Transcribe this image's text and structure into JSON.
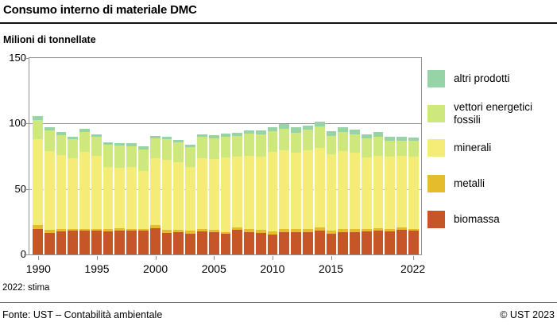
{
  "header": {
    "title": "Consumo interno di materiale DMC",
    "subtitle": "Milioni di tonnellate"
  },
  "footnote": "2022: stima",
  "footer": {
    "source": "Fonte: UST – Contabilità ambientale",
    "copyright": "© UST 2023"
  },
  "colors": {
    "biomassa": "#c65527",
    "metalli": "#e4bd2d",
    "minerali": "#f3ed77",
    "vettori_energetici_fossili": "#cfe87d",
    "altri_prodotti": "#96d3a7",
    "frame": "#8f8f8f"
  },
  "legend": [
    {
      "label": "altri prodotti",
      "color": "#96d3a7"
    },
    {
      "label": "vettori energetici fossili",
      "color": "#cfe87d"
    },
    {
      "label": "minerali",
      "color": "#f3ed77"
    },
    {
      "label": "metalli",
      "color": "#e4bd2d"
    },
    {
      "label": "biomassa",
      "color": "#c65527"
    }
  ],
  "chart_data": {
    "type": "bar",
    "stacked": true,
    "title": "Consumo interno di materiale DMC",
    "ylabel": "Milioni di tonnellate",
    "ylim": [
      0,
      150
    ],
    "y_ticks": [
      0,
      50,
      100,
      150
    ],
    "gridlines": [
      {
        "value": 50,
        "style": "dashed"
      },
      {
        "value": 100,
        "style": "solid"
      }
    ],
    "x": [
      1990,
      1991,
      1992,
      1993,
      1994,
      1995,
      1996,
      1997,
      1998,
      1999,
      2000,
      2001,
      2002,
      2003,
      2004,
      2005,
      2006,
      2007,
      2008,
      2009,
      2010,
      2011,
      2012,
      2013,
      2014,
      2015,
      2016,
      2017,
      2018,
      2019,
      2020,
      2021,
      2022
    ],
    "x_tick_labels": [
      "1990",
      "1995",
      "2000",
      "2005",
      "2010",
      "2015",
      "2022"
    ],
    "series": [
      {
        "name": "biomassa",
        "color": "#c65527",
        "values": [
          19.4,
          16.5,
          17.6,
          18.2,
          18.0,
          18.2,
          17.6,
          18.4,
          18.0,
          18.0,
          20.0,
          16.6,
          17.0,
          16.0,
          17.6,
          17.2,
          15.6,
          18.6,
          17.2,
          16.6,
          15.1,
          17.2,
          17.2,
          17.0,
          18.0,
          15.6,
          17.0,
          17.0,
          17.6,
          18.2,
          17.6,
          18.8,
          18.0
        ]
      },
      {
        "name": "metalli",
        "color": "#e4bd2d",
        "values": [
          3.1,
          2.4,
          1.6,
          1.4,
          1.6,
          1.4,
          1.6,
          1.6,
          1.6,
          1.6,
          2.7,
          2.0,
          1.6,
          2.0,
          1.6,
          1.7,
          1.6,
          2.0,
          2.0,
          2.0,
          2.5,
          2.4,
          2.4,
          2.2,
          2.6,
          2.4,
          2.2,
          2.2,
          2.0,
          1.8,
          1.6,
          1.8,
          1.6
        ]
      },
      {
        "name": "minerali",
        "color": "#f3ed77",
        "values": [
          65.5,
          59.9,
          56.5,
          54.1,
          58.8,
          55.7,
          47.8,
          46.4,
          47.2,
          44.1,
          50.5,
          53.5,
          51.9,
          49.1,
          54.0,
          53.7,
          56.6,
          54.2,
          56.4,
          56.2,
          60.6,
          60.1,
          58.0,
          60.1,
          60.7,
          58.6,
          59.6,
          58.4,
          54.6,
          55.2,
          55.4,
          54.6,
          55.2
        ]
      },
      {
        "name": "vettori energetici fossili",
        "color": "#cfe87d",
        "values": [
          14.5,
          16.0,
          15.6,
          14.1,
          15.4,
          14.6,
          16.6,
          16.8,
          16.0,
          16.6,
          15.4,
          15.9,
          14.9,
          14.6,
          16.4,
          16.0,
          16.3,
          15.4,
          16.5,
          17.1,
          15.9,
          16.2,
          15.3,
          15.8,
          16.7,
          13.8,
          14.7,
          14.3,
          14.2,
          14.6,
          12.4,
          11.8,
          12.0
        ]
      },
      {
        "name": "altri prodotti",
        "color": "#96d3a7",
        "values": [
          3.0,
          2.3,
          2.1,
          1.9,
          2.1,
          1.8,
          2.1,
          1.9,
          2.1,
          2.1,
          2.1,
          2.1,
          2.0,
          2.0,
          2.3,
          2.5,
          2.4,
          2.7,
          2.8,
          3.0,
          3.0,
          3.7,
          4.2,
          3.5,
          3.2,
          3.5,
          3.6,
          3.6,
          3.5,
          3.7,
          3.1,
          3.1,
          2.6
        ]
      }
    ]
  }
}
